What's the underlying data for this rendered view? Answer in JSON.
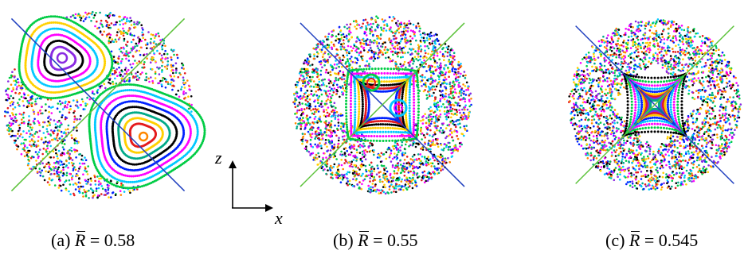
{
  "figure": {
    "panels": [
      {
        "id": "a",
        "caption_prefix": "(a) ",
        "symbol": "R",
        "caption_rest": " = 0.58"
      },
      {
        "id": "b",
        "caption_prefix": "(b) ",
        "symbol": "R",
        "caption_rest": " = 0.55"
      },
      {
        "id": "c",
        "caption_prefix": "(c) ",
        "symbol": "R",
        "caption_rest": " = 0.545"
      }
    ],
    "axes_indicator": {
      "z_label": "z",
      "x_label": "x"
    },
    "colors": {
      "diagonal_blue": "#1f3fbf",
      "diagonal_green": "#5cc23a",
      "palette": [
        "#e41a1c",
        "#ff00ff",
        "#00c8ff",
        "#00cc44",
        "#0022ff",
        "#ffd000",
        "#000000",
        "#ff8800",
        "#8a2be2",
        "#00aa88"
      ]
    }
  }
}
